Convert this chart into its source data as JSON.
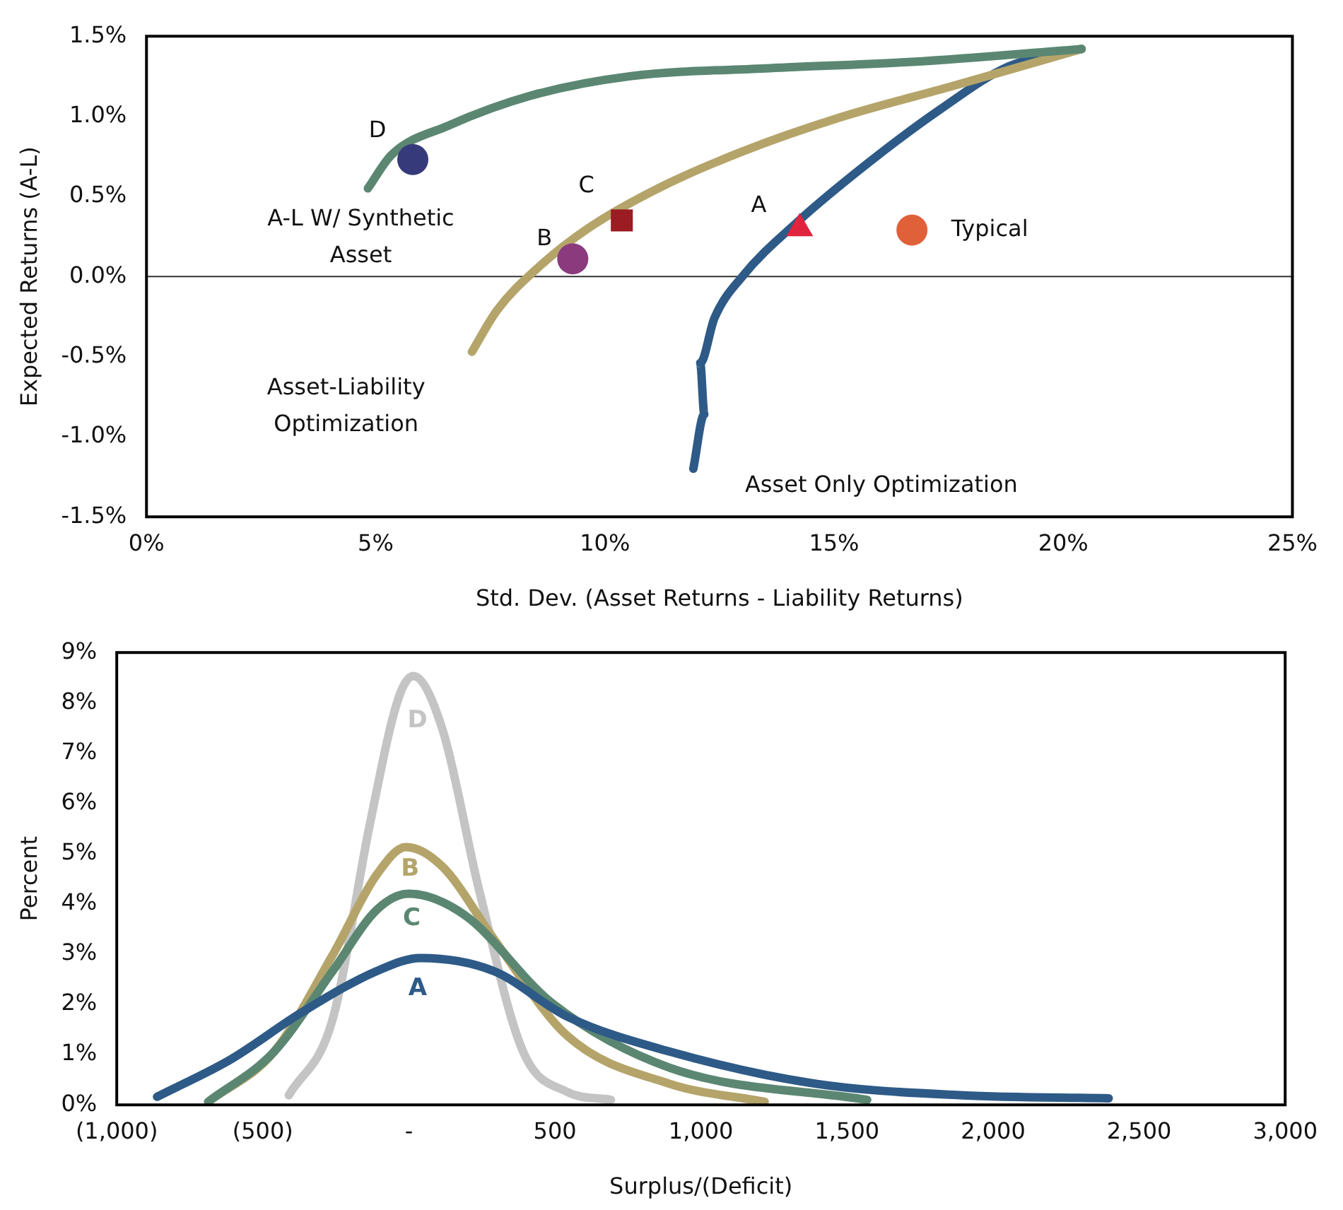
{
  "chart_data": [
    {
      "type": "line",
      "xlabel": "Std. Dev. (Asset Returns - Liability Returns)",
      "ylabel": "Expected Returns (A-L)",
      "xlim": [
        0,
        25
      ],
      "ylim": [
        -1.5,
        1.5
      ],
      "xticks": [
        {
          "value": 0,
          "label": "0%"
        },
        {
          "value": 5,
          "label": "5%"
        },
        {
          "value": 10,
          "label": "10%"
        },
        {
          "value": 15,
          "label": "15%"
        },
        {
          "value": 20,
          "label": "20%"
        },
        {
          "value": 25,
          "label": "25%"
        }
      ],
      "yticks": [
        {
          "value": -1.5,
          "label": "-1.5%"
        },
        {
          "value": -1,
          "label": "-1.0%"
        },
        {
          "value": -0.5,
          "label": "-0.5%"
        },
        {
          "value": 0,
          "label": "0.0%"
        },
        {
          "value": 0.5,
          "label": "0.5%"
        },
        {
          "value": 1,
          "label": "1.0%"
        },
        {
          "value": 1.5,
          "label": "1.5%"
        }
      ],
      "grid": false,
      "legend": false,
      "ref_lines": [
        {
          "axis": "y",
          "value": 0,
          "color": "#333333"
        }
      ],
      "series": [
        {
          "name": "A-L W/ Synthetic Asset",
          "type": "line",
          "marker": "none",
          "color": "#5b8772",
          "x": [
            4.83,
            5.35,
            6.57,
            8.4,
            10.55,
            13.6,
            16.7,
            20.4
          ],
          "values": [
            0.55,
            0.76,
            0.94,
            1.13,
            1.25,
            1.3,
            1.34,
            1.42
          ]
        },
        {
          "name": "Asset-Liability Optimization",
          "type": "line",
          "marker": "none",
          "color": "#b5a46a",
          "x": [
            7.1,
            7.65,
            8.56,
            9.63,
            11.16,
            13.0,
            15.1,
            17.6,
            20.4
          ],
          "values": [
            -0.47,
            -0.21,
            0.06,
            0.3,
            0.55,
            0.78,
            0.99,
            1.19,
            1.42
          ]
        },
        {
          "name": "Asset Only Optimization",
          "type": "line",
          "marker": "none",
          "color": "#2e5a87",
          "x": [
            11.93,
            12.17,
            12.08,
            12.39,
            13.0,
            14.2,
            15.75,
            17.3,
            18.8,
            20.4
          ],
          "values": [
            -1.2,
            -0.86,
            -0.54,
            -0.26,
            0,
            0.34,
            0.71,
            1.04,
            1.31,
            1.42
          ]
        },
        {
          "name": "D",
          "type": "scatter",
          "marker": "circle",
          "color": "#363a7a",
          "x": [
            5.81
          ],
          "values": [
            0.73
          ]
        },
        {
          "name": "C",
          "type": "scatter",
          "marker": "square",
          "color": "#9b1c22",
          "x": [
            10.37
          ],
          "values": [
            0.35
          ]
        },
        {
          "name": "B",
          "type": "scatter",
          "marker": "circle",
          "color": "#8b3a7e",
          "x": [
            9.3
          ],
          "values": [
            0.11
          ]
        },
        {
          "name": "A",
          "type": "scatter",
          "marker": "triangle",
          "color": "#e0243d",
          "x": [
            14.25
          ],
          "values": [
            0.3
          ]
        },
        {
          "name": "Typical",
          "type": "scatter",
          "marker": "circle",
          "color": "#e0603a",
          "x": [
            16.7
          ],
          "values": [
            0.29
          ]
        }
      ]
    },
    {
      "type": "line",
      "xlabel": "Surplus/(Deficit)",
      "ylabel": "Percent",
      "xlim": [
        -1000,
        3000
      ],
      "ylim": [
        0,
        9
      ],
      "marker": "none",
      "grid": false,
      "legend": false,
      "xticks": [
        {
          "value": -1000,
          "label": "(1,000)"
        },
        {
          "value": -500,
          "label": "(500)"
        },
        {
          "value": 0,
          "label": "-"
        },
        {
          "value": 500,
          "label": "500"
        },
        {
          "value": 1000,
          "label": "1,000"
        },
        {
          "value": 1500,
          "label": "1,500"
        },
        {
          "value": 2000,
          "label": "2,000"
        },
        {
          "value": 2500,
          "label": "2,500"
        },
        {
          "value": 3000,
          "label": "3,000"
        }
      ],
      "yticks": [
        {
          "value": 0,
          "label": "0%"
        },
        {
          "value": 1,
          "label": "1%"
        },
        {
          "value": 2,
          "label": "2%"
        },
        {
          "value": 3,
          "label": "3%"
        },
        {
          "value": 4,
          "label": "4%"
        },
        {
          "value": 5,
          "label": "5%"
        },
        {
          "value": 6,
          "label": "6%"
        },
        {
          "value": 7,
          "label": "7%"
        },
        {
          "value": 8,
          "label": "8%"
        },
        {
          "value": 9,
          "label": "9%"
        }
      ],
      "series": [
        {
          "name": "A",
          "color": "#2e5a87",
          "x": [
            -862,
            -611,
            -361,
            -110,
            40,
            291,
            541,
            892,
            1393,
            1895,
            2396
          ],
          "values": [
            0.16,
            0.9,
            1.86,
            2.66,
            2.92,
            2.66,
            1.76,
            1.06,
            0.42,
            0.19,
            0.13
          ]
        },
        {
          "name": "C",
          "color": "#5b8772",
          "x": [
            -687,
            -461,
            -261,
            -110,
            0,
            190,
            491,
            892,
            1569
          ],
          "values": [
            0.06,
            1.06,
            2.66,
            3.88,
            4.2,
            3.78,
            2.02,
            0.74,
            0.1
          ]
        },
        {
          "name": "B",
          "color": "#b5a46a",
          "x": [
            -687,
            -461,
            -261,
            -110,
            -10,
            115,
            291,
            541,
            892,
            1218
          ],
          "values": [
            0.06,
            1.06,
            2.98,
            4.58,
            5.13,
            4.74,
            3.3,
            1.38,
            0.42,
            0.06
          ]
        },
        {
          "name": "D",
          "color": "#c4c4c4",
          "x": [
            -411,
            -261,
            -135,
            -35,
            15,
            115,
            241,
            391,
            541,
            692
          ],
          "values": [
            0.19,
            1.7,
            5.54,
            8.1,
            8.53,
            7.47,
            4.26,
            1.06,
            0.26,
            0.1
          ]
        }
      ]
    }
  ]
}
